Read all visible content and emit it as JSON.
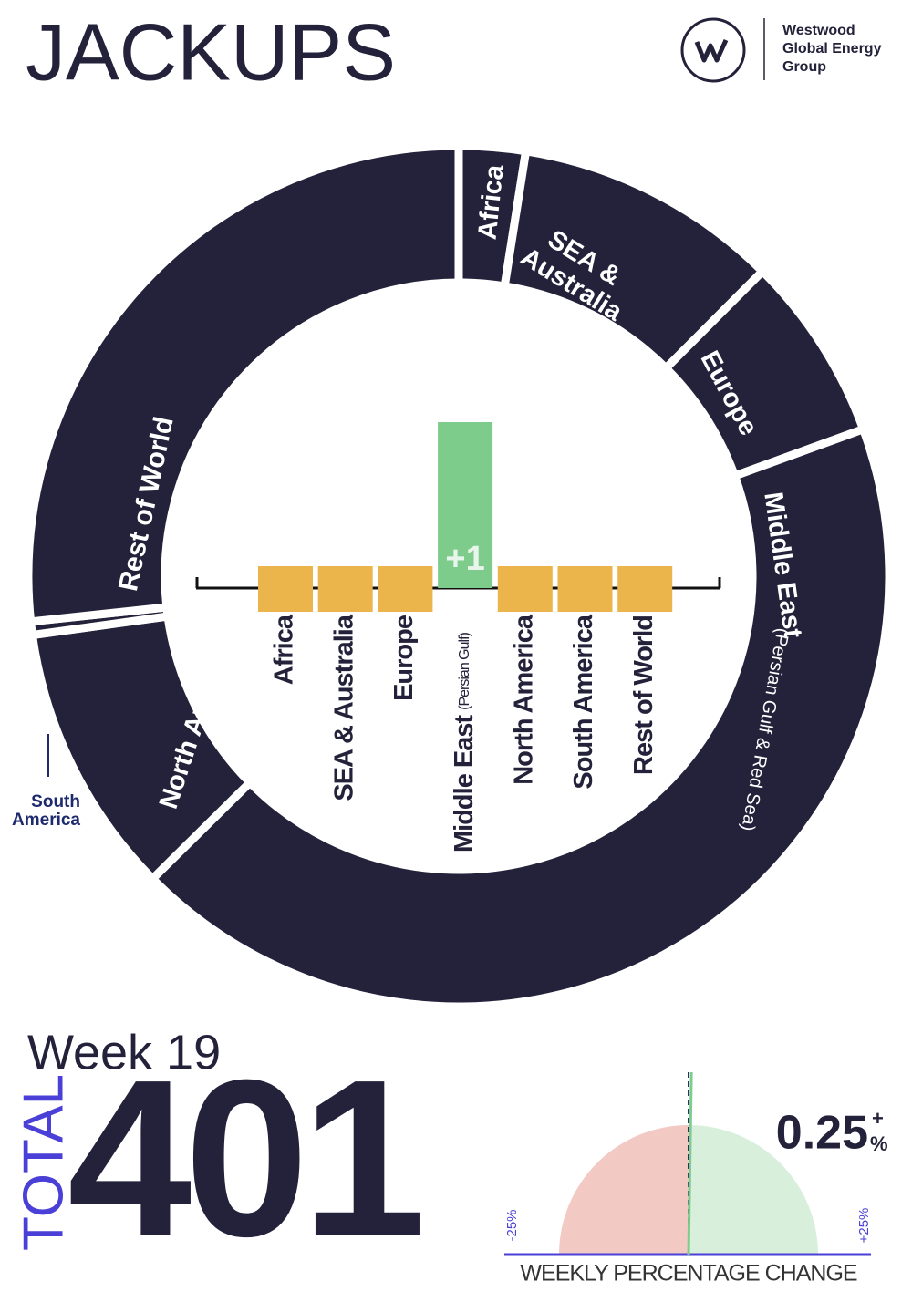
{
  "header": {
    "title": "JACKUPS",
    "logo_lines": [
      "Westwood",
      "Global Energy",
      "Group"
    ]
  },
  "chart_data": [
    {
      "type": "donut",
      "categories": [
        "Africa",
        "SEA & Australia",
        "Europe",
        "Middle East",
        "North America",
        "South America",
        "Rest of World"
      ],
      "category_notes": [
        null,
        null,
        null,
        "(Persian Gulf & Red Sea)",
        null,
        null,
        null
      ],
      "values": [
        10,
        40,
        28,
        173,
        41,
        2,
        107
      ],
      "color": "#23223a"
    },
    {
      "type": "bar",
      "categories": [
        "Africa",
        "SEA & Australia",
        "Europe",
        "Middle East",
        "North America",
        "South America",
        "Rest of World"
      ],
      "category_notes": [
        null,
        null,
        null,
        "(Persian Gulf)",
        null,
        null,
        null
      ],
      "values": [
        0,
        0,
        0,
        1,
        0,
        0,
        0
      ],
      "value_labels": [
        null,
        null,
        null,
        "+1",
        null,
        null,
        null
      ],
      "color": "#7dcc8c",
      "zero_color": "#ebb54c"
    },
    {
      "type": "gauge",
      "title": "WEEKLY PERCENTAGE CHANGE",
      "value": 0.25,
      "value_label": "0.25",
      "sign": "+",
      "unit": "%",
      "xlim": [
        -25,
        25
      ],
      "xticks": [
        {
          "value": -25,
          "label": "-25%"
        },
        {
          "value": 25,
          "label": "+25%"
        }
      ],
      "negative_color": "#f2c9c3",
      "positive_color": "#d8efdb",
      "needle_color": "#7dcc8c"
    }
  ],
  "summary": {
    "week": "Week 19",
    "total_label": "TOTAL",
    "total": 401
  }
}
